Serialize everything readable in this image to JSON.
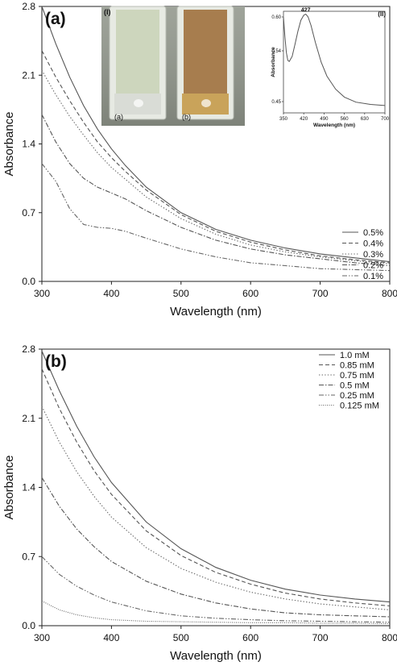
{
  "chart_data": [
    {
      "type": "line",
      "panel_label": "(a)",
      "xlabel": "Wavelength (nm)",
      "ylabel": "Absorbance",
      "xlim": [
        300,
        800
      ],
      "ylim": [
        0,
        2.8
      ],
      "xticks": [
        "300",
        "400",
        "500",
        "600",
        "700",
        "800"
      ],
      "yticks": [
        "0.0",
        "0.7",
        "1.4",
        "2.1",
        "2.8"
      ],
      "legend_position": "right",
      "series": [
        {
          "name": "0.5%",
          "dash": "solid",
          "x": [
            300,
            320,
            340,
            360,
            380,
            400,
            420,
            450,
            500,
            550,
            600,
            650,
            700,
            750,
            800
          ],
          "y": [
            2.8,
            2.42,
            2.08,
            1.79,
            1.55,
            1.35,
            1.18,
            0.96,
            0.7,
            0.53,
            0.42,
            0.34,
            0.28,
            0.24,
            0.2
          ]
        },
        {
          "name": "0.4%",
          "dash": "dashed",
          "x": [
            300,
            320,
            340,
            360,
            380,
            400,
            420,
            450,
            500,
            550,
            600,
            650,
            700,
            750,
            800
          ],
          "y": [
            2.35,
            2.08,
            1.84,
            1.62,
            1.42,
            1.26,
            1.12,
            0.93,
            0.68,
            0.51,
            0.4,
            0.32,
            0.26,
            0.22,
            0.19
          ]
        },
        {
          "name": "0.3%",
          "dash": "dotted",
          "x": [
            300,
            320,
            340,
            360,
            380,
            400,
            420,
            450,
            500,
            550,
            600,
            650,
            700,
            750,
            800
          ],
          "y": [
            2.15,
            1.9,
            1.68,
            1.49,
            1.31,
            1.16,
            1.04,
            0.86,
            0.64,
            0.48,
            0.37,
            0.3,
            0.25,
            0.21,
            0.18
          ]
        },
        {
          "name": "0.2%",
          "dash": "dashdot",
          "x": [
            300,
            320,
            340,
            360,
            380,
            400,
            420,
            450,
            500,
            550,
            600,
            650,
            700,
            750,
            800
          ],
          "y": [
            1.7,
            1.42,
            1.2,
            1.05,
            0.96,
            0.9,
            0.84,
            0.72,
            0.55,
            0.42,
            0.33,
            0.27,
            0.23,
            0.19,
            0.16
          ]
        },
        {
          "name": "0.1%",
          "dash": "dashdotdot",
          "x": [
            300,
            320,
            340,
            360,
            380,
            400,
            420,
            450,
            500,
            550,
            600,
            650,
            700,
            750,
            800
          ],
          "y": [
            1.2,
            1.02,
            0.74,
            0.58,
            0.55,
            0.54,
            0.51,
            0.44,
            0.33,
            0.25,
            0.19,
            0.16,
            0.13,
            0.12,
            0.11
          ]
        }
      ],
      "photo_inset": {
        "label": "(I)",
        "vials": [
          {
            "label": "(a)",
            "color": "#cdd6bd"
          },
          {
            "label": "(b)",
            "color": "#a77d4e"
          }
        ]
      },
      "spectrum_inset": {
        "label": "(II)",
        "type": "line",
        "xlabel": "Wavelength (nm)",
        "ylabel": "Absorbance",
        "xlim": [
          350,
          700
        ],
        "ylim": [
          0.43,
          0.61
        ],
        "xticks": [
          "350",
          "420",
          "490",
          "560",
          "630",
          "700"
        ],
        "yticks": [
          "0.45",
          "0.54",
          "0.60"
        ],
        "peak_label": "427",
        "x": [
          350,
          355,
          360,
          365,
          370,
          380,
          390,
          400,
          410,
          420,
          427,
          435,
          445,
          460,
          480,
          500,
          530,
          560,
          600,
          650,
          700
        ],
        "y": [
          0.6,
          0.565,
          0.537,
          0.523,
          0.521,
          0.53,
          0.552,
          0.575,
          0.594,
          0.603,
          0.605,
          0.6,
          0.585,
          0.555,
          0.52,
          0.495,
          0.472,
          0.458,
          0.449,
          0.445,
          0.443
        ]
      }
    },
    {
      "type": "line",
      "panel_label": "(b)",
      "xlabel": "Wavelength (nm)",
      "ylabel": "Absorbance",
      "xlim": [
        300,
        800
      ],
      "ylim": [
        0,
        2.8
      ],
      "xticks": [
        "300",
        "400",
        "500",
        "600",
        "700",
        "800"
      ],
      "yticks": [
        "0.0",
        "0.7",
        "1.4",
        "2.1",
        "2.8"
      ],
      "legend_position": "top-right",
      "series": [
        {
          "name": "1.0 mM",
          "dash": "solid",
          "x": [
            300,
            325,
            350,
            375,
            400,
            450,
            500,
            550,
            600,
            650,
            700,
            750,
            800
          ],
          "y": [
            2.78,
            2.38,
            2.02,
            1.71,
            1.45,
            1.05,
            0.78,
            0.59,
            0.46,
            0.37,
            0.31,
            0.27,
            0.24
          ]
        },
        {
          "name": "0.85 mM",
          "dash": "dashed",
          "x": [
            300,
            325,
            350,
            375,
            400,
            450,
            500,
            550,
            600,
            650,
            700,
            750,
            800
          ],
          "y": [
            2.6,
            2.2,
            1.86,
            1.57,
            1.33,
            0.96,
            0.71,
            0.54,
            0.42,
            0.33,
            0.27,
            0.23,
            0.2
          ]
        },
        {
          "name": "0.75 mM",
          "dash": "dotted",
          "x": [
            300,
            325,
            350,
            375,
            400,
            450,
            500,
            550,
            600,
            650,
            700,
            750,
            800
          ],
          "y": [
            2.22,
            1.86,
            1.56,
            1.31,
            1.1,
            0.79,
            0.58,
            0.44,
            0.34,
            0.27,
            0.22,
            0.19,
            0.16
          ]
        },
        {
          "name": "0.5 mM",
          "dash": "dashdot",
          "x": [
            300,
            325,
            350,
            375,
            400,
            450,
            500,
            550,
            600,
            650,
            700,
            750,
            800
          ],
          "y": [
            1.5,
            1.21,
            0.98,
            0.8,
            0.65,
            0.45,
            0.32,
            0.23,
            0.17,
            0.13,
            0.11,
            0.1,
            0.09
          ]
        },
        {
          "name": "0.25 mM",
          "dash": "dashdotdot",
          "x": [
            300,
            325,
            350,
            375,
            400,
            450,
            500,
            550,
            600,
            650,
            700,
            750,
            800
          ],
          "y": [
            0.7,
            0.52,
            0.4,
            0.31,
            0.24,
            0.15,
            0.1,
            0.075,
            0.06,
            0.05,
            0.045,
            0.04,
            0.035
          ]
        },
        {
          "name": "0.125 mM",
          "dash": "densedot",
          "x": [
            300,
            325,
            350,
            375,
            400,
            450,
            500,
            550,
            600,
            650,
            700,
            750,
            800
          ],
          "y": [
            0.25,
            0.16,
            0.11,
            0.08,
            0.06,
            0.045,
            0.04,
            0.035,
            0.03,
            0.03,
            0.025,
            0.025,
            0.02
          ]
        }
      ]
    }
  ]
}
